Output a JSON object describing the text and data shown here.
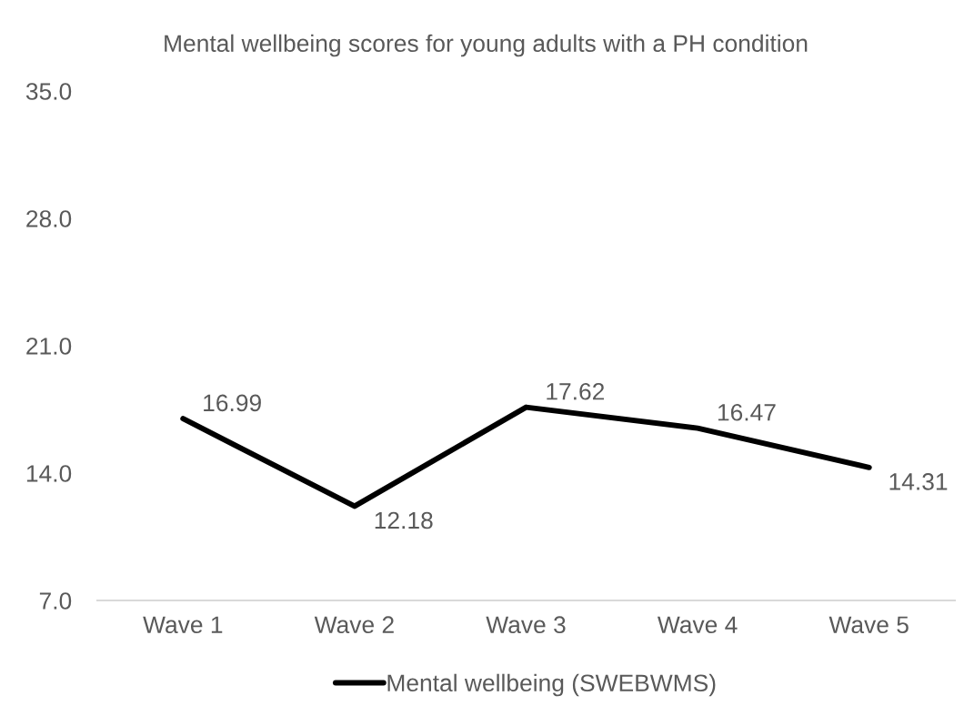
{
  "chart_data": {
    "type": "line",
    "title": "Mental wellbeing scores for young adults with a PH condition",
    "categories": [
      "Wave 1",
      "Wave 2",
      "Wave 3",
      "Wave 4",
      "Wave 5"
    ],
    "series": [
      {
        "name": "Mental wellbeing (SWEBWMS)",
        "color": "#000000",
        "values": [
          16.99,
          12.18,
          17.62,
          16.47,
          14.31
        ]
      }
    ],
    "ylim": [
      7,
      35
    ],
    "yticks": [
      {
        "value": 7,
        "label": "7.0"
      },
      {
        "value": 14,
        "label": "14.0"
      },
      {
        "value": 21,
        "label": "21.0"
      },
      {
        "value": 28,
        "label": "28.0"
      },
      {
        "value": 35,
        "label": "35.0"
      }
    ],
    "data_labels": true,
    "legend": "bottom",
    "grid": false,
    "marker": "none",
    "line_style": "solid"
  }
}
